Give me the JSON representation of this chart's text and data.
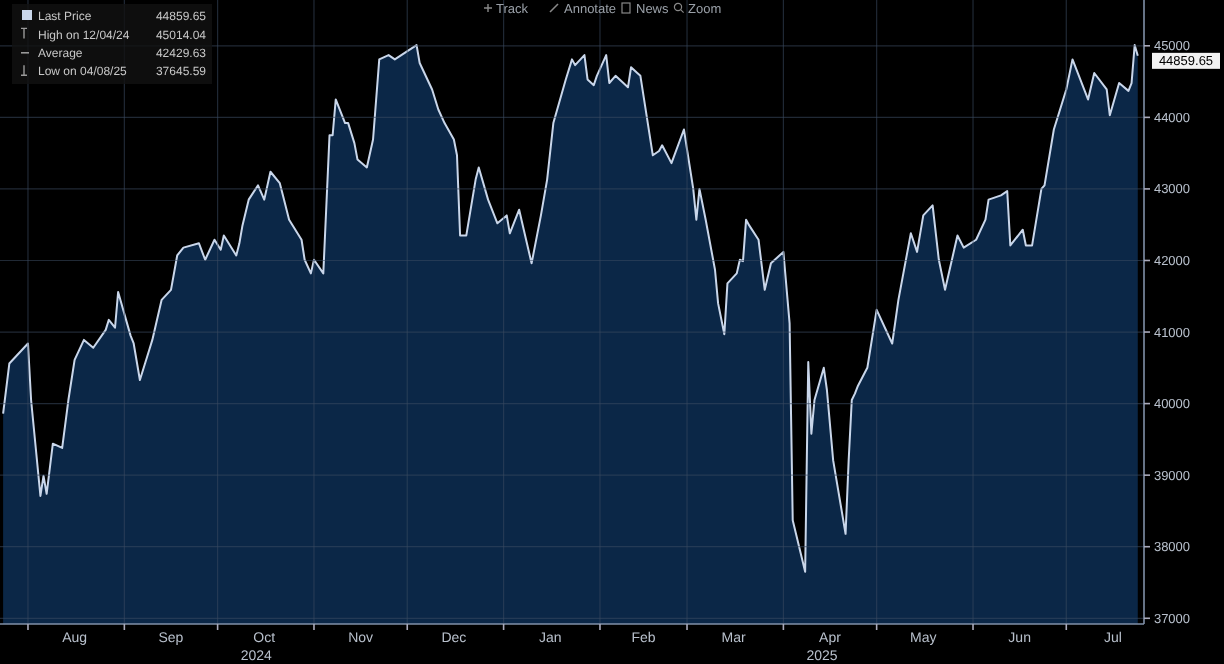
{
  "chart_data": {
    "type": "area",
    "legend": "top left",
    "grid": true,
    "xlim": [
      "2024-07-23",
      "2025-07-26"
    ],
    "ylim": [
      36920,
      45640
    ],
    "yticks": [
      37000,
      38000,
      39000,
      40000,
      41000,
      42000,
      43000,
      44000,
      45000
    ],
    "xticks": [
      {
        "value": "2024-08-01",
        "label": null
      },
      {
        "value": "2024-08-16",
        "label": "Aug"
      },
      {
        "value": "2024-09-01",
        "label": null
      },
      {
        "value": "2024-09-16",
        "label": "Sep"
      },
      {
        "value": "2024-10-01",
        "label": null
      },
      {
        "value": "2024-10-16",
        "label": "Oct\n2024"
      },
      {
        "value": "2024-11-01",
        "label": null
      },
      {
        "value": "2024-11-16",
        "label": "Nov"
      },
      {
        "value": "2024-12-01",
        "label": null
      },
      {
        "value": "2024-12-16",
        "label": "Dec"
      },
      {
        "value": "2025-01-01",
        "label": null
      },
      {
        "value": "2025-01-16",
        "label": "Jan"
      },
      {
        "value": "2025-02-01",
        "label": null
      },
      {
        "value": "2025-02-15",
        "label": "Feb"
      },
      {
        "value": "2025-03-01",
        "label": null
      },
      {
        "value": "2025-03-16",
        "label": "Mar"
      },
      {
        "value": "2025-04-01",
        "label": null
      },
      {
        "value": "2025-04-16",
        "label": "Apr\n2025"
      },
      {
        "value": "2025-05-01",
        "label": null
      },
      {
        "value": "2025-05-16",
        "label": "May"
      },
      {
        "value": "2025-06-01",
        "label": null
      },
      {
        "value": "2025-06-16",
        "label": "Jun"
      },
      {
        "value": "2025-07-01",
        "label": null
      },
      {
        "value": "2025-07-16",
        "label": "Jul"
      }
    ],
    "annotations": [
      "44859.65",
      "High on 12/04/24 45014.04",
      "Average 42429.63",
      "Low on 04/08/25 37645.59",
      "Track",
      "Annotate",
      "News",
      "Zoom",
      {
        "text": "44859.65",
        "x": "2025-07-24",
        "y": 44859.65
      }
    ],
    "series": [
      {
        "name": "Last Price",
        "color": "#c9d6ea",
        "x": [
          "2024-07-24",
          "2024-07-26",
          "2024-08-01",
          "2024-08-02",
          "2024-08-05",
          "2024-08-06",
          "2024-08-07",
          "2024-08-09",
          "2024-08-12",
          "2024-08-14",
          "2024-08-16",
          "2024-08-19",
          "2024-08-22",
          "2024-08-26",
          "2024-08-27",
          "2024-08-29",
          "2024-08-30",
          "2024-09-03",
          "2024-09-04",
          "2024-09-06",
          "2024-09-09",
          "2024-09-10",
          "2024-09-13",
          "2024-09-16",
          "2024-09-18",
          "2024-09-20",
          "2024-09-25",
          "2024-09-27",
          "2024-09-30",
          "2024-10-02",
          "2024-10-03",
          "2024-10-07",
          "2024-10-08",
          "2024-10-09",
          "2024-10-11",
          "2024-10-14",
          "2024-10-16",
          "2024-10-18",
          "2024-10-21",
          "2024-10-22",
          "2024-10-24",
          "2024-10-28",
          "2024-10-29",
          "2024-10-31",
          "2024-11-01",
          "2024-11-04",
          "2024-11-06",
          "2024-11-07",
          "2024-11-08",
          "2024-11-11",
          "2024-11-12",
          "2024-11-14",
          "2024-11-15",
          "2024-11-18",
          "2024-11-20",
          "2024-11-22",
          "2024-11-25",
          "2024-11-27",
          "2024-12-04",
          "2024-12-05",
          "2024-12-09",
          "2024-12-11",
          "2024-12-13",
          "2024-12-16",
          "2024-12-17",
          "2024-12-18",
          "2024-12-20",
          "2024-12-23",
          "2024-12-24",
          "2024-12-27",
          "2024-12-30",
          "2025-01-02",
          "2025-01-03",
          "2025-01-06",
          "2025-01-07",
          "2025-01-10",
          "2025-01-13",
          "2025-01-15",
          "2025-01-17",
          "2025-01-21",
          "2025-01-23",
          "2025-01-24",
          "2025-01-27",
          "2025-01-28",
          "2025-01-30",
          "2025-01-31",
          "2025-02-03",
          "2025-02-04",
          "2025-02-06",
          "2025-02-10",
          "2025-02-11",
          "2025-02-13",
          "2025-02-14",
          "2025-02-18",
          "2025-02-20",
          "2025-02-21",
          "2025-02-24",
          "2025-02-28",
          "2025-03-03",
          "2025-03-04",
          "2025-03-05",
          "2025-03-07",
          "2025-03-10",
          "2025-03-11",
          "2025-03-13",
          "2025-03-14",
          "2025-03-17",
          "2025-03-18",
          "2025-03-19",
          "2025-03-20",
          "2025-03-21",
          "2025-03-24",
          "2025-03-26",
          "2025-03-28",
          "2025-04-01",
          "2025-04-03",
          "2025-04-04",
          "2025-04-08",
          "2025-04-09",
          "2025-04-10",
          "2025-04-11",
          "2025-04-14",
          "2025-04-15",
          "2025-04-17",
          "2025-04-21",
          "2025-04-22",
          "2025-04-23",
          "2025-04-24",
          "2025-04-25",
          "2025-04-28",
          "2025-05-01",
          "2025-05-06",
          "2025-05-08",
          "2025-05-12",
          "2025-05-14",
          "2025-05-16",
          "2025-05-19",
          "2025-05-21",
          "2025-05-23",
          "2025-05-27",
          "2025-05-29",
          "2025-06-02",
          "2025-06-05",
          "2025-06-06",
          "2025-06-10",
          "2025-06-12",
          "2025-06-13",
          "2025-06-17",
          "2025-06-18",
          "2025-06-20",
          "2025-06-23",
          "2025-06-24",
          "2025-06-27",
          "2025-07-01",
          "2025-07-03",
          "2025-07-08",
          "2025-07-10",
          "2025-07-14",
          "2025-07-15",
          "2025-07-18",
          "2025-07-21",
          "2025-07-22",
          "2025-07-23",
          "2025-07-24"
        ],
        "values": [
          39860,
          40560,
          40840,
          40050,
          38710,
          38990,
          38740,
          39440,
          39380,
          40050,
          40610,
          40890,
          40780,
          41030,
          41170,
          41060,
          41560,
          40950,
          40840,
          40330,
          40750,
          40890,
          41450,
          41590,
          42070,
          42180,
          42240,
          42010,
          42290,
          42150,
          42350,
          42070,
          42240,
          42490,
          42850,
          43050,
          42850,
          43240,
          43080,
          42910,
          42570,
          42290,
          42010,
          41820,
          42010,
          41820,
          43750,
          43750,
          44250,
          43920,
          43920,
          43640,
          43410,
          43300,
          43690,
          44810,
          44870,
          44810,
          45010,
          44760,
          44390,
          44110,
          43920,
          43690,
          43470,
          42350,
          42350,
          43130,
          43300,
          42850,
          42520,
          42630,
          42380,
          42710,
          42520,
          41960,
          42630,
          43130,
          43920,
          44530,
          44810,
          44730,
          44870,
          44530,
          44450,
          44580,
          44870,
          44480,
          44580,
          44420,
          44700,
          44620,
          44580,
          43470,
          43530,
          43610,
          43360,
          43830,
          43000,
          42570,
          43000,
          42570,
          41870,
          41400,
          40970,
          41680,
          41820,
          42010,
          41990,
          42570,
          42490,
          42290,
          41590,
          41960,
          42120,
          41120,
          38370,
          37650,
          40580,
          39580,
          40050,
          40500,
          40190,
          39210,
          38180,
          39210,
          40050,
          40140,
          40250,
          40500,
          41310,
          40840,
          41450,
          42380,
          42120,
          42630,
          42770,
          42010,
          41590,
          42350,
          42180,
          42290,
          42570,
          42850,
          42910,
          42970,
          42210,
          42430,
          42210,
          42210,
          43000,
          43050,
          43830,
          44390,
          44810,
          44250,
          44620,
          44390,
          44030,
          44480,
          44370,
          44480,
          45010,
          44859.65
        ]
      }
    ]
  }
}
